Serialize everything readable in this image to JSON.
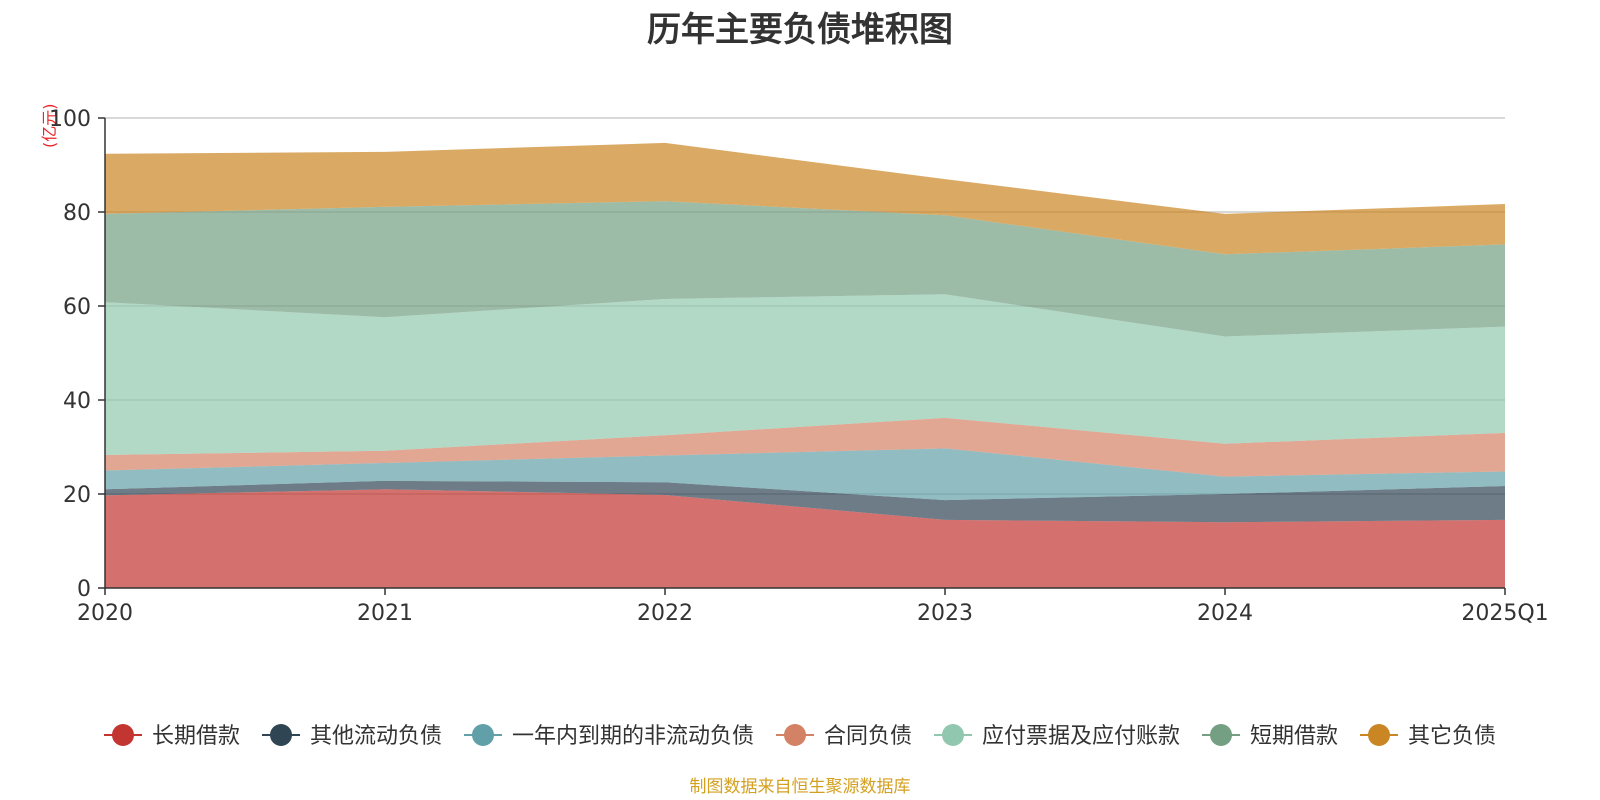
{
  "chart_data": {
    "type": "area",
    "stacked": true,
    "title": "历年主要负债堆积图",
    "unit_label": "(亿元)",
    "categories": [
      "2020",
      "2021",
      "2022",
      "2023",
      "2024",
      "2025Q1"
    ],
    "ylim": [
      0,
      100
    ],
    "yticks": [
      "0",
      "20",
      "40",
      "60",
      "80",
      "100"
    ],
    "grid": true,
    "legend_position": "bottom",
    "series": [
      {
        "name": "长期借款",
        "color": "#c23531",
        "values": [
          19.7,
          21.0,
          19.8,
          14.5,
          14.0,
          14.5
        ]
      },
      {
        "name": "其他流动负债",
        "color": "#2f4554",
        "values": [
          1.3,
          1.8,
          2.7,
          4.2,
          6.0,
          7.2
        ]
      },
      {
        "name": "一年内到期的非流动负债",
        "color": "#61a0a8",
        "values": [
          4.0,
          3.8,
          5.7,
          11.0,
          3.7,
          3.1
        ]
      },
      {
        "name": "合同负债",
        "color": "#d48265",
        "values": [
          3.3,
          2.6,
          4.3,
          6.5,
          7.0,
          8.2
        ]
      },
      {
        "name": "应付票据及应付账款",
        "color": "#91c7ae",
        "values": [
          32.5,
          28.4,
          29.0,
          26.3,
          22.8,
          22.6
        ]
      },
      {
        "name": "短期借款",
        "color": "#749f83",
        "values": [
          18.8,
          23.5,
          20.8,
          16.8,
          17.5,
          17.5
        ]
      },
      {
        "name": "其它负债",
        "color": "#ca8622",
        "values": [
          12.8,
          11.7,
          12.4,
          7.7,
          8.6,
          8.6
        ]
      }
    ]
  },
  "footer": {
    "source": "制图数据来自恒生聚源数据库"
  }
}
